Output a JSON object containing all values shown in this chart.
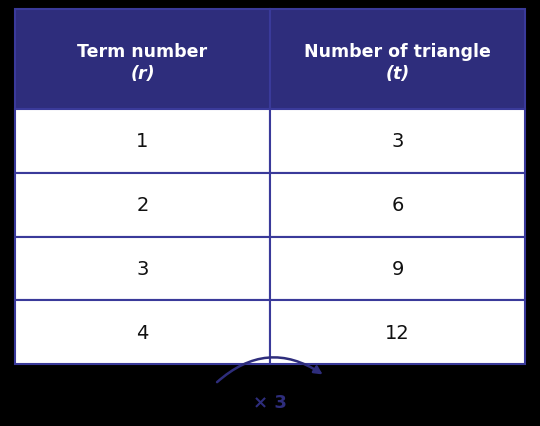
{
  "col1_header_line1": "Term number",
  "col1_header_line2": "(r)",
  "col2_header_line1": "Number of triangle",
  "col2_header_line2": "(t)",
  "rows": [
    [
      "1",
      "3"
    ],
    [
      "2",
      "6"
    ],
    [
      "3",
      "9"
    ],
    [
      "4",
      "12"
    ]
  ],
  "header_bg": "#2E2D7C",
  "header_text_color": "#FFFFFF",
  "cell_bg": "#FFFFFF",
  "cell_text_color": "#111111",
  "border_color": "#3A3A9A",
  "arrow_color": "#2E2D7C",
  "annotation_text": "× 3",
  "bg_color": "#000000"
}
